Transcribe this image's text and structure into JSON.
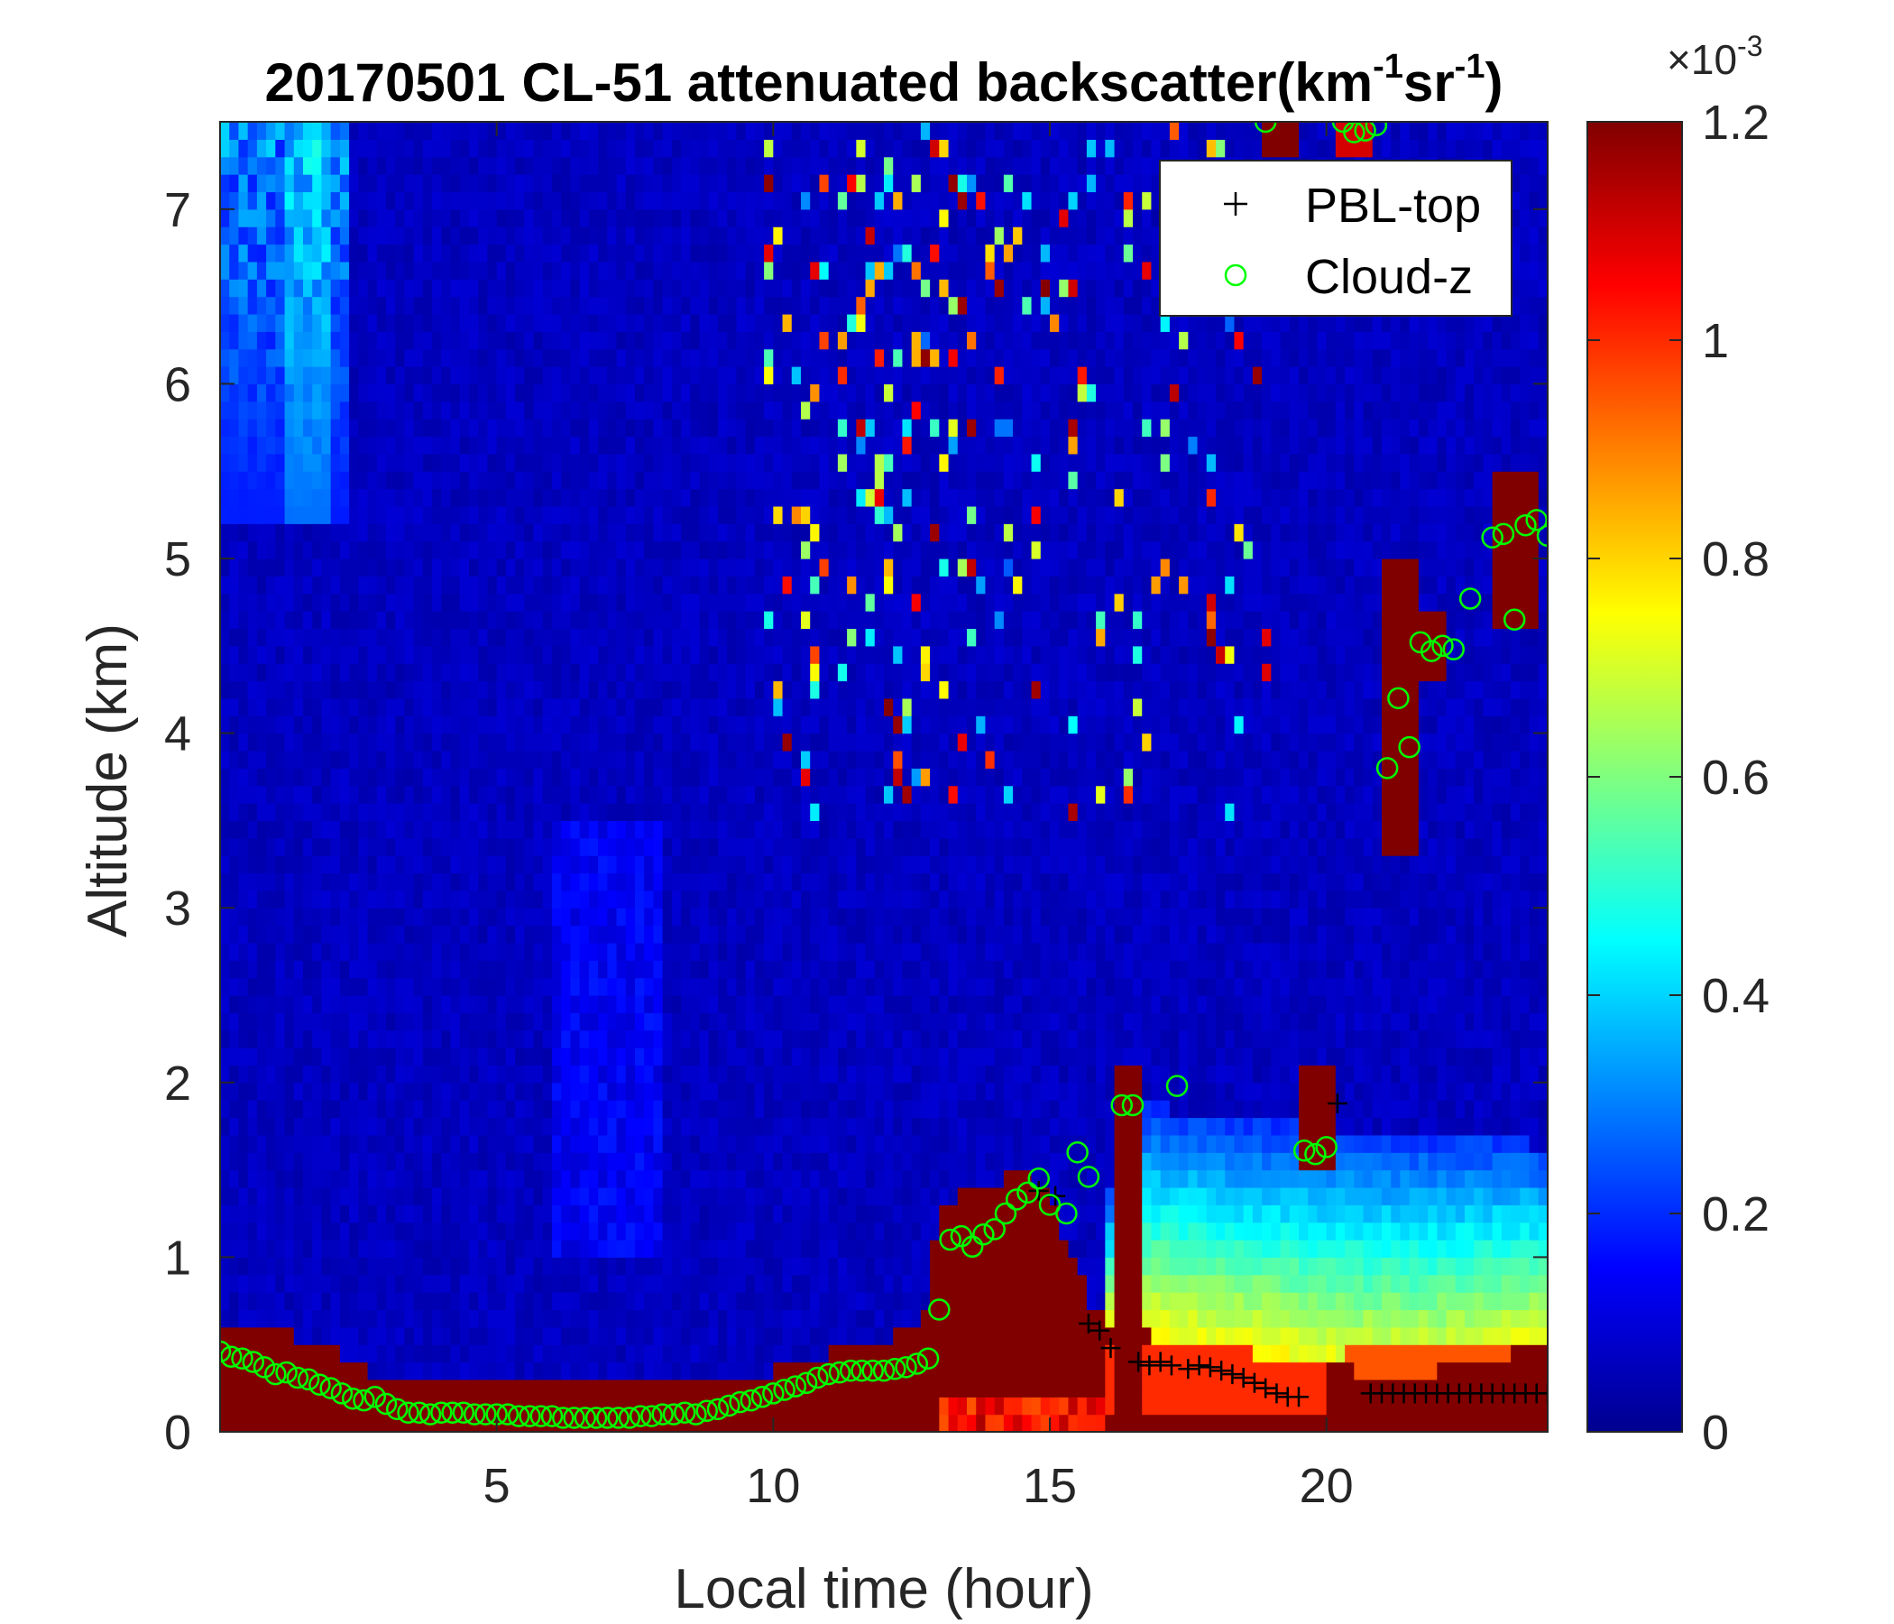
{
  "chart_data": {
    "type": "heatmap",
    "title": {
      "date": "20170501",
      "text": "CL-51 attenuated backscatter(km",
      "sup1": "-1",
      "mid": "sr",
      "sup2": "-1",
      "end": ")"
    },
    "xlabel": "Local time (hour)",
    "ylabel": "Altitude (km)",
    "xlim": [
      0,
      24
    ],
    "ylim": [
      0,
      7.5
    ],
    "xticks": [
      5,
      10,
      15,
      20
    ],
    "yticks": [
      0,
      1,
      2,
      3,
      4,
      5,
      6,
      7
    ],
    "colorbar": {
      "colormap": "jet",
      "range": [
        0,
        1.2
      ],
      "ticks": [
        "0",
        "0.2",
        "0.4",
        "0.6",
        "0.8",
        "1",
        "1.2"
      ],
      "multiplier_base": "×10",
      "multiplier_exp": "-3"
    },
    "legend": {
      "location": "top-right",
      "entries": [
        {
          "label": "PBL-top",
          "marker": "+",
          "color": "#000000"
        },
        {
          "label": "Cloud-z",
          "marker": "o",
          "color": "#00ff00"
        }
      ]
    },
    "series": [
      {
        "name": "PBL-top",
        "marker": "+",
        "color": "#000000",
        "x": [
          14.8,
          15.1,
          15.7,
          15.9,
          16.1,
          16.6,
          16.8,
          17.0,
          17.2,
          17.5,
          17.7,
          17.9,
          18.1,
          18.3,
          18.5,
          18.7,
          18.9,
          19.1,
          19.3,
          19.5,
          20.2,
          20.8,
          21.0,
          21.2,
          21.4,
          21.6,
          21.8,
          22.0,
          22.2,
          22.4,
          22.6,
          22.8,
          23.0,
          23.2,
          23.4,
          23.6,
          23.8,
          24.0
        ],
        "y": [
          1.38,
          1.35,
          0.62,
          0.58,
          0.48,
          0.4,
          0.38,
          0.4,
          0.38,
          0.36,
          0.38,
          0.37,
          0.35,
          0.33,
          0.31,
          0.28,
          0.25,
          0.22,
          0.2,
          0.2,
          1.88,
          0.22,
          0.22,
          0.22,
          0.22,
          0.22,
          0.22,
          0.22,
          0.22,
          0.22,
          0.22,
          0.22,
          0.22,
          0.22,
          0.22,
          0.22,
          0.22,
          0.22
        ]
      },
      {
        "name": "Cloud-z",
        "marker": "o",
        "color": "#00ff00",
        "x": [
          0.0,
          0.2,
          0.4,
          0.6,
          0.8,
          1.0,
          1.2,
          1.4,
          1.6,
          1.8,
          2.0,
          2.2,
          2.4,
          2.6,
          2.8,
          3.0,
          3.2,
          3.4,
          3.6,
          3.8,
          4.0,
          4.2,
          4.4,
          4.6,
          4.8,
          5.0,
          5.2,
          5.4,
          5.6,
          5.8,
          6.0,
          6.2,
          6.4,
          6.6,
          6.8,
          7.0,
          7.2,
          7.4,
          7.6,
          7.8,
          8.0,
          8.2,
          8.4,
          8.6,
          8.8,
          9.0,
          9.2,
          9.4,
          9.6,
          9.8,
          10.0,
          10.2,
          10.4,
          10.6,
          10.8,
          11.0,
          11.2,
          11.4,
          11.6,
          11.8,
          12.0,
          12.2,
          12.4,
          12.6,
          12.8,
          13.0,
          13.2,
          13.4,
          13.6,
          13.8,
          14.0,
          14.2,
          14.4,
          14.6,
          14.8,
          15.0,
          15.3,
          15.5,
          15.7,
          16.3,
          16.5,
          17.3,
          19.6,
          19.8,
          20.0,
          18.9,
          20.3,
          20.5,
          20.7,
          20.9,
          21.1,
          21.3,
          21.5,
          21.7,
          21.9,
          22.1,
          22.3,
          22.6,
          23.0,
          23.2,
          23.4,
          23.6,
          23.8,
          24.0
        ],
        "y": [
          0.46,
          0.43,
          0.42,
          0.4,
          0.37,
          0.33,
          0.34,
          0.31,
          0.3,
          0.27,
          0.25,
          0.22,
          0.19,
          0.18,
          0.2,
          0.16,
          0.13,
          0.11,
          0.11,
          0.1,
          0.11,
          0.11,
          0.11,
          0.1,
          0.1,
          0.1,
          0.1,
          0.09,
          0.09,
          0.09,
          0.09,
          0.08,
          0.08,
          0.08,
          0.08,
          0.08,
          0.08,
          0.08,
          0.09,
          0.09,
          0.1,
          0.1,
          0.11,
          0.1,
          0.12,
          0.13,
          0.15,
          0.17,
          0.18,
          0.2,
          0.22,
          0.24,
          0.26,
          0.28,
          0.31,
          0.33,
          0.34,
          0.35,
          0.35,
          0.35,
          0.35,
          0.36,
          0.37,
          0.39,
          0.42,
          0.7,
          1.1,
          1.12,
          1.06,
          1.13,
          1.16,
          1.25,
          1.33,
          1.37,
          1.45,
          1.3,
          1.25,
          1.6,
          1.46,
          1.87,
          1.87,
          1.98,
          1.61,
          1.59,
          1.63,
          7.5,
          7.5,
          7.44,
          7.45,
          7.48,
          3.8,
          4.2,
          3.92,
          4.52,
          4.47,
          4.5,
          4.48,
          4.77,
          5.12,
          5.14,
          4.65,
          5.19,
          5.22,
          5.13
        ]
      }
    ]
  }
}
